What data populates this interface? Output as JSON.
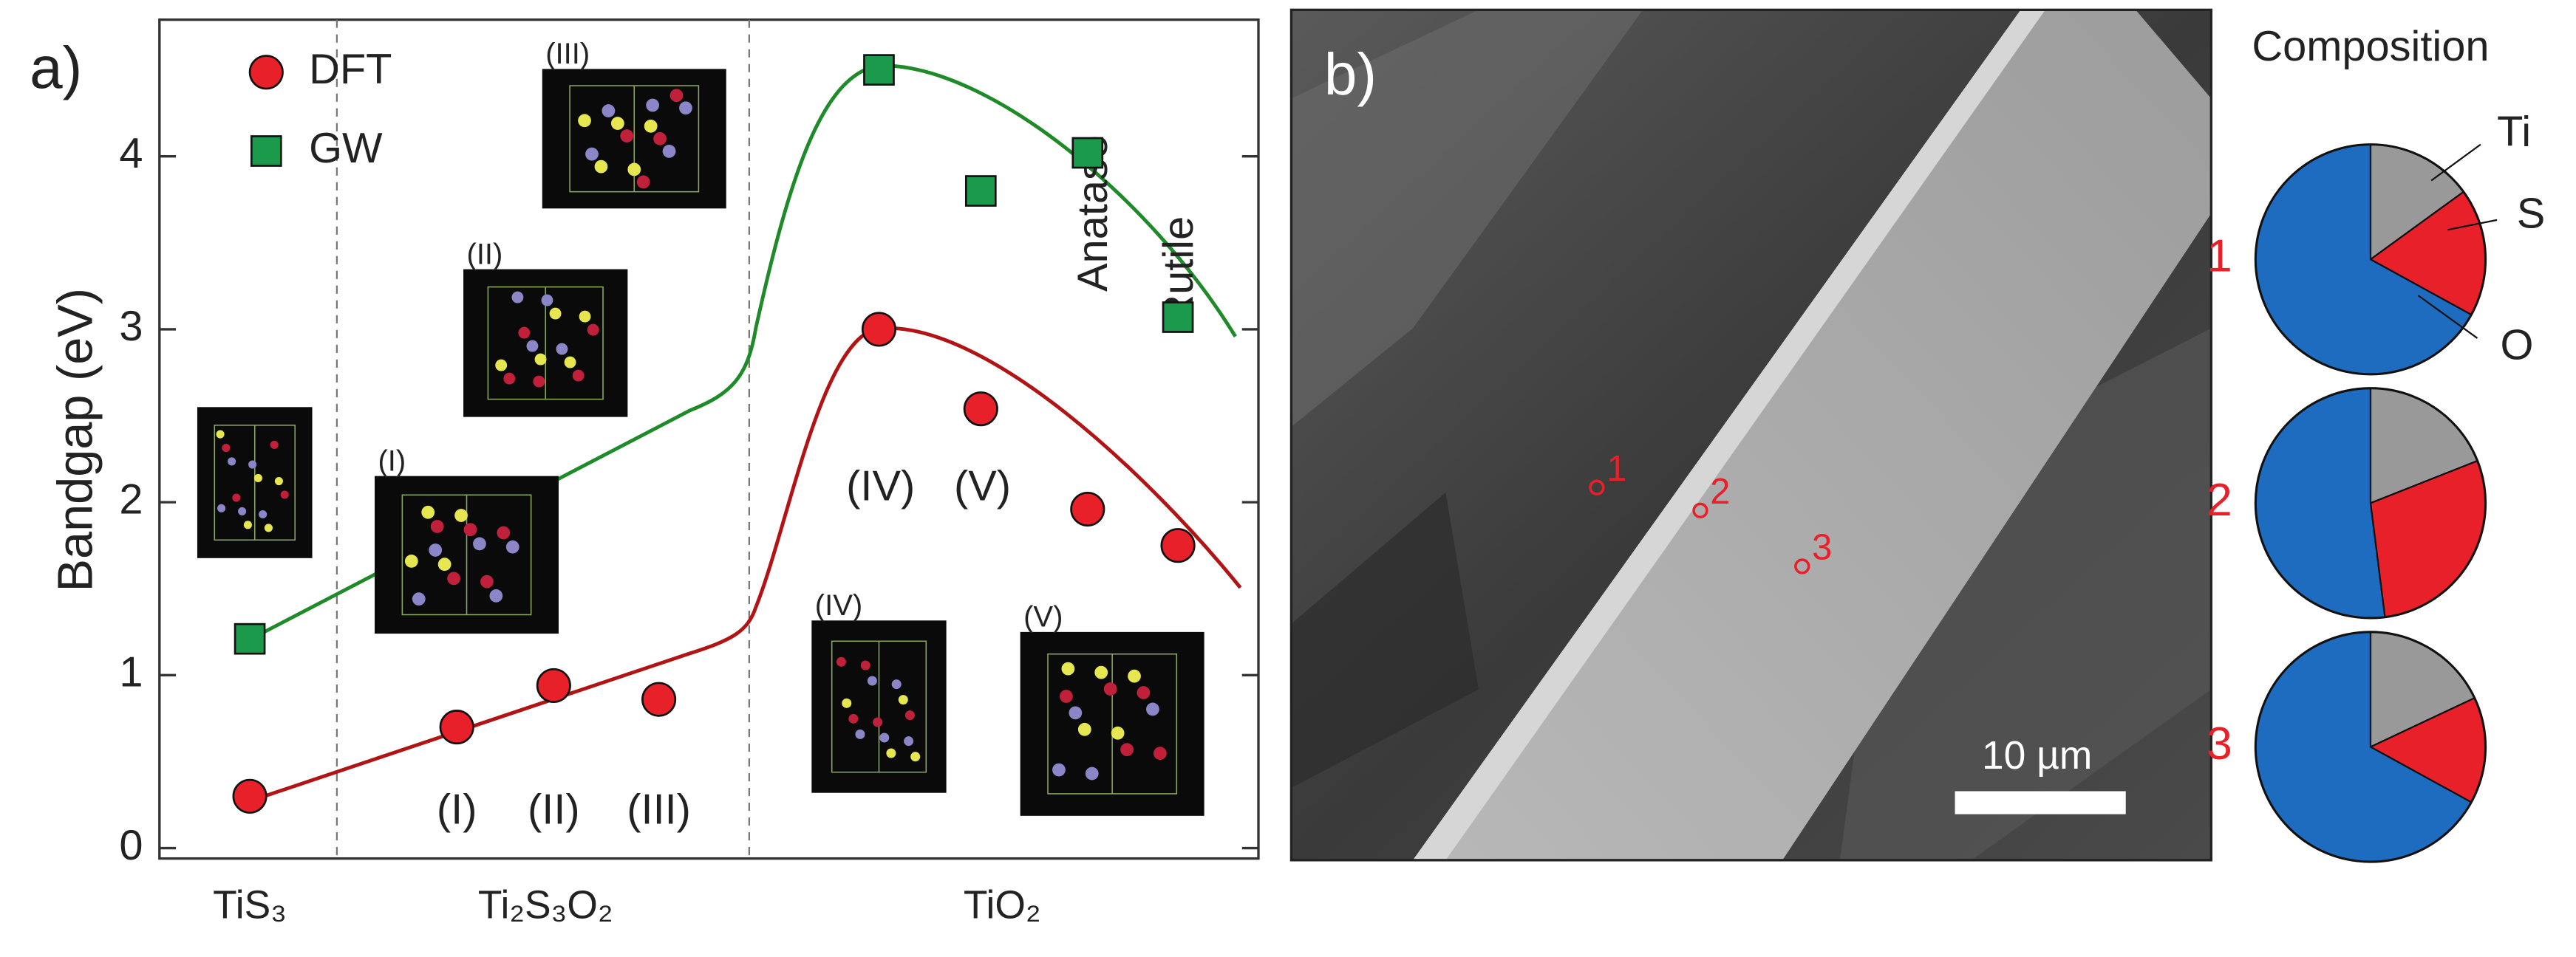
{
  "chart_data": [
    {
      "type": "scatter",
      "panel_label": "a)",
      "y_label": "Bandgap (eV)",
      "categories": [
        null,
        "(I)",
        "(II)",
        "(III)",
        "(IV)",
        "(V)",
        "Anatase",
        "Rutile"
      ],
      "group_labels": [
        "TiS₃",
        "Ti₂S₃O₂",
        "TiO₂"
      ],
      "inset_labels": [
        "(I)",
        "(II)",
        "(III)",
        "(IV)",
        "(V)"
      ],
      "series": [
        {
          "name": "DFT",
          "color": "#e8202a",
          "line_color": "#b01414",
          "marker": "circle",
          "values": [
            0.3,
            0.7,
            0.94,
            0.86,
            3.0,
            2.54,
            1.96,
            1.75
          ]
        },
        {
          "name": "GW",
          "color": "#1a9a4a",
          "line_color": "#1f8a2a",
          "marker": "square",
          "values": [
            1.21,
            null,
            null,
            null,
            4.5,
            3.8,
            4.02,
            3.07
          ]
        }
      ],
      "ylim": [
        -0.06,
        4.79
      ],
      "yticks": [
        0,
        1,
        2,
        3,
        4
      ],
      "legend": "upper left"
    },
    {
      "type": "image",
      "panel_label": "b)",
      "points": [
        "1",
        "2",
        "3"
      ],
      "scale_bar": "10 µm"
    },
    {
      "type": "pie",
      "title": "Composition",
      "label": "1",
      "categories": [
        "Ti",
        "S",
        "O"
      ],
      "colors": [
        "#999999",
        "#e8202a",
        "#1e6cc0"
      ],
      "values": [
        15,
        18,
        67
      ]
    },
    {
      "type": "pie",
      "label": "2",
      "colors": [
        "#999999",
        "#e8202a",
        "#1e6cc0"
      ],
      "values": [
        19,
        29,
        52
      ]
    },
    {
      "type": "pie",
      "label": "3",
      "colors": [
        "#999999",
        "#e8202a",
        "#1e6cc0"
      ],
      "values": [
        18,
        15,
        67
      ]
    }
  ]
}
